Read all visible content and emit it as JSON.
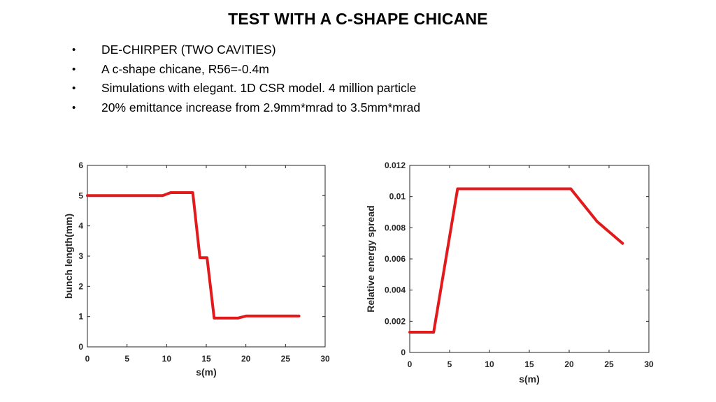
{
  "slide": {
    "title": "TEST WITH A C-SHAPE CHICANE",
    "bullets": [
      "DE-CHIRPER (TWO CAVITIES)",
      "A c-shape chicane, R56=-0.4m",
      "Simulations with elegant. 1D CSR model. 4 million particle",
      "20% emittance  increase from 2.9mm*mrad to 3.5mm*mrad"
    ]
  },
  "colors": {
    "series": "#e31a1c",
    "axis": "#262626",
    "grid": "#e6e6e6"
  },
  "chart_data": [
    {
      "type": "line",
      "title": "",
      "xlabel": "s(m)",
      "ylabel": "bunch length(mm)",
      "xlim": [
        0,
        30
      ],
      "ylim": [
        0,
        6
      ],
      "xticks": [
        "0",
        "5",
        "10",
        "15",
        "20",
        "25",
        "30"
      ],
      "yticks": [
        "0",
        "1",
        "2",
        "3",
        "4",
        "5",
        "6"
      ],
      "series": [
        {
          "x": [
            0,
            9.5,
            10.5,
            13.3,
            14.2,
            15.1,
            16.0,
            19.0,
            20.0,
            26.7
          ],
          "y": [
            5.0,
            5.0,
            5.1,
            5.1,
            2.95,
            2.95,
            0.95,
            0.95,
            1.02,
            1.02
          ]
        }
      ]
    },
    {
      "type": "line",
      "title": "",
      "xlabel": "s(m)",
      "ylabel": "Relative energy spread",
      "xlim": [
        0,
        30
      ],
      "ylim": [
        0,
        0.012
      ],
      "xticks": [
        "0",
        "5",
        "10",
        "15",
        "20",
        "25",
        "30"
      ],
      "yticks": [
        "0",
        "0.002",
        "0.004",
        "0.006",
        "0.008",
        "0.01",
        "0.012"
      ],
      "series": [
        {
          "x": [
            0,
            3.0,
            6.0,
            10.0,
            15.0,
            20.2,
            23.5,
            26.7
          ],
          "y": [
            0.0013,
            0.0013,
            0.0105,
            0.0105,
            0.0105,
            0.0105,
            0.0084,
            0.007
          ]
        }
      ]
    }
  ]
}
